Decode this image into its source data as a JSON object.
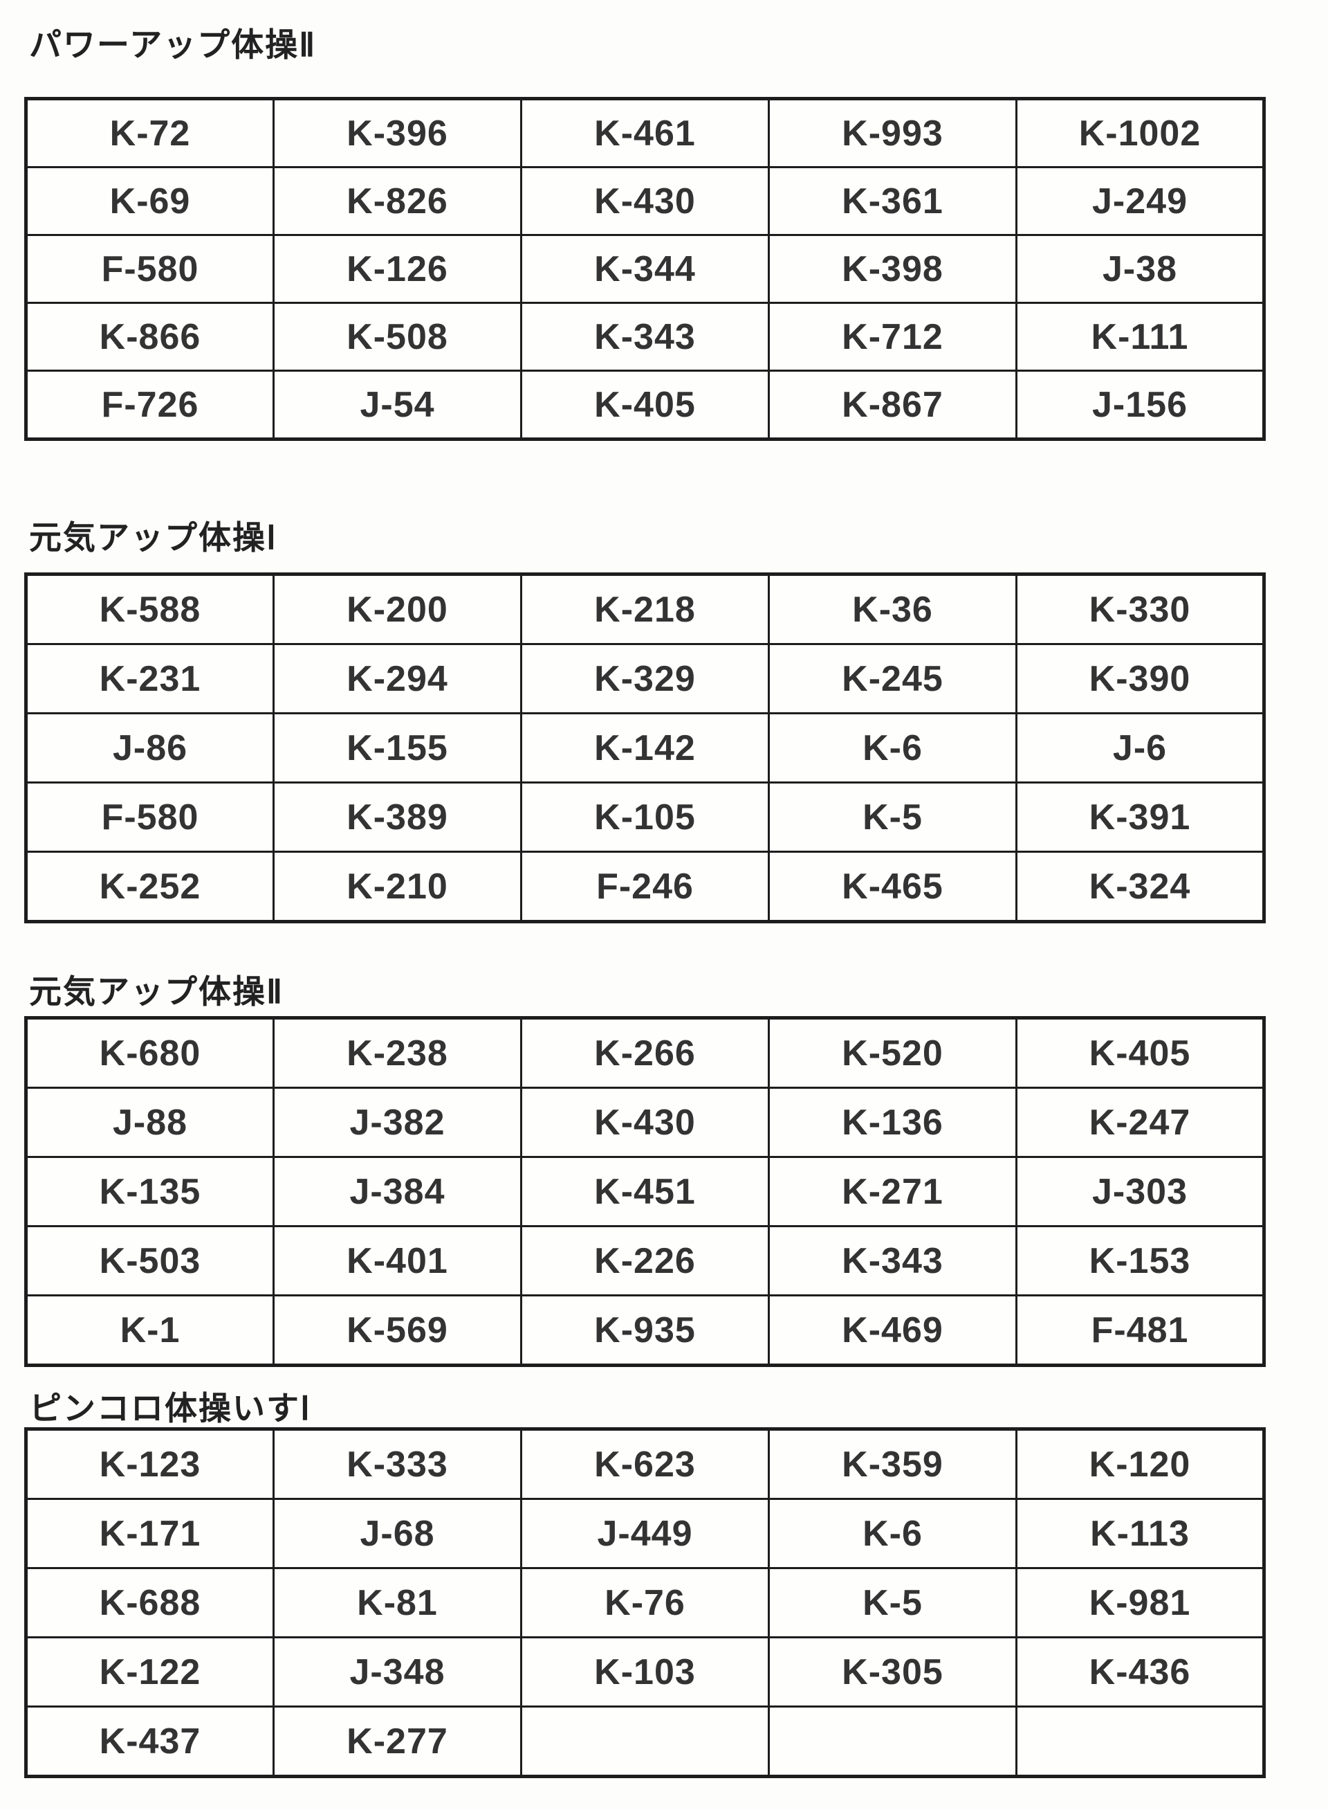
{
  "page": {
    "background": "#fdfdfc",
    "border_color": "#1d1d1d",
    "text_color": "#333333"
  },
  "sections": [
    {
      "title": "パワーアップ体操Ⅱ",
      "rows": [
        [
          "K-72",
          "K-396",
          "K-461",
          "K-993",
          "K-1002"
        ],
        [
          "K-69",
          "K-826",
          "K-430",
          "K-361",
          "J-249"
        ],
        [
          "F-580",
          "K-126",
          "K-344",
          "K-398",
          "J-38"
        ],
        [
          "K-866",
          "K-508",
          "K-343",
          "K-712",
          "K-111"
        ],
        [
          "F-726",
          "J-54",
          "K-405",
          "K-867",
          "J-156"
        ]
      ]
    },
    {
      "title": "元気アップ体操Ⅰ",
      "rows": [
        [
          "K-588",
          "K-200",
          "K-218",
          "K-36",
          "K-330"
        ],
        [
          "K-231",
          "K-294",
          "K-329",
          "K-245",
          "K-390"
        ],
        [
          "J-86",
          "K-155",
          "K-142",
          "K-6",
          "J-6"
        ],
        [
          "F-580",
          "K-389",
          "K-105",
          "K-5",
          "K-391"
        ],
        [
          "K-252",
          "K-210",
          "F-246",
          "K-465",
          "K-324"
        ]
      ]
    },
    {
      "title": "元気アップ体操Ⅱ",
      "rows": [
        [
          "K-680",
          "K-238",
          "K-266",
          "K-520",
          "K-405"
        ],
        [
          "J-88",
          "J-382",
          "K-430",
          "K-136",
          "K-247"
        ],
        [
          "K-135",
          "J-384",
          "K-451",
          "K-271",
          "J-303"
        ],
        [
          "K-503",
          "K-401",
          "K-226",
          "K-343",
          "K-153"
        ],
        [
          "K-1",
          "K-569",
          "K-935",
          "K-469",
          "F-481"
        ]
      ]
    },
    {
      "title": "ピンコロ体操いすⅠ",
      "rows": [
        [
          "K-123",
          "K-333",
          "K-623",
          "K-359",
          "K-120"
        ],
        [
          "K-171",
          "J-68",
          "J-449",
          "K-6",
          "K-113"
        ],
        [
          "K-688",
          "K-81",
          "K-76",
          "K-5",
          "K-981"
        ],
        [
          "K-122",
          "J-348",
          "K-103",
          "K-305",
          "K-436"
        ],
        [
          "K-437",
          "K-277",
          "",
          "",
          ""
        ]
      ]
    }
  ]
}
